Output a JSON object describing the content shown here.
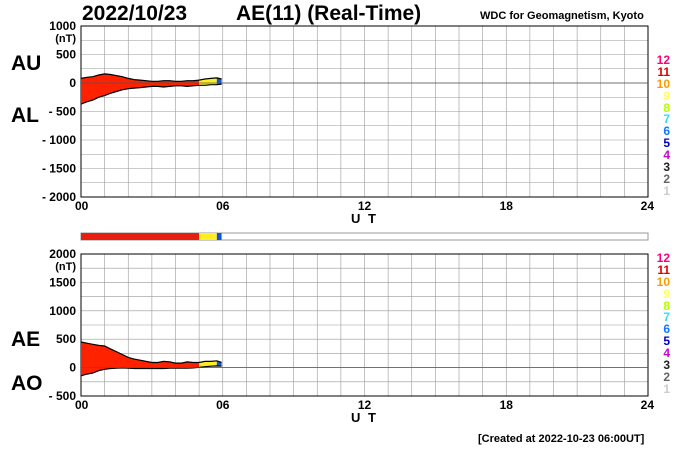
{
  "header": {
    "date": "2022/10/23",
    "title": "AE(11) (Real-Time)",
    "source": "WDC for Geomagnetism, Kyoto"
  },
  "footer": {
    "created": "[Created at 2022-10-23 06:00UT]"
  },
  "level_legend": {
    "levels": [
      "12",
      "11",
      "10",
      "9",
      "8",
      "7",
      "6",
      "5",
      "4",
      "3",
      "2",
      "1"
    ],
    "colors": [
      "#ff007f",
      "#e00000",
      "#ff9900",
      "#ffff66",
      "#b4ff00",
      "#33ddff",
      "#1177ff",
      "#0000bb",
      "#cc00cc",
      "#222222",
      "#666666",
      "#cccccc"
    ]
  },
  "colors": {
    "fill_main": "#ff2200",
    "fill_late": "#ffee22",
    "fill_end": "#1155dd",
    "grid": "#999999"
  },
  "chart_data": [
    {
      "type": "area",
      "name": "AU/AL",
      "side_labels": [
        "AU",
        "AL"
      ],
      "ylabel": "(nT)",
      "xlabel": "U T",
      "xlim": [
        0,
        24
      ],
      "ylim": [
        -2000,
        1000
      ],
      "xticks": [
        "00",
        "06",
        "12",
        "18",
        "24"
      ],
      "yticks": [
        {
          "value": 1000,
          "label": "1000"
        },
        {
          "value": 500,
          "label": "500"
        },
        {
          "value": 0,
          "label": "0"
        },
        {
          "value": -500,
          "label": "- 500"
        },
        {
          "value": -1000,
          "label": "- 1000"
        },
        {
          "value": -1500,
          "label": "- 1500"
        },
        {
          "value": -2000,
          "label": "- 2000"
        }
      ],
      "series": [
        {
          "name": "AU",
          "x": [
            0,
            0.25,
            0.5,
            0.75,
            1.0,
            1.25,
            1.5,
            1.75,
            2.0,
            2.25,
            2.5,
            2.75,
            3.0,
            3.25,
            3.5,
            3.75,
            4.0,
            4.25,
            4.5,
            4.75,
            5.0,
            5.25,
            5.5,
            5.75,
            5.95
          ],
          "values": [
            80,
            100,
            110,
            140,
            160,
            150,
            130,
            110,
            80,
            60,
            50,
            40,
            30,
            30,
            40,
            40,
            30,
            30,
            40,
            40,
            50,
            70,
            80,
            90,
            70
          ]
        },
        {
          "name": "AL",
          "x": [
            0,
            0.25,
            0.5,
            0.75,
            1.0,
            1.25,
            1.5,
            1.75,
            2.0,
            2.25,
            2.5,
            2.75,
            3.0,
            3.25,
            3.5,
            3.75,
            4.0,
            4.25,
            4.5,
            4.75,
            5.0,
            5.25,
            5.5,
            5.75,
            5.95
          ],
          "values": [
            -370,
            -330,
            -300,
            -250,
            -220,
            -180,
            -150,
            -120,
            -100,
            -90,
            -80,
            -70,
            -60,
            -60,
            -70,
            -60,
            -50,
            -50,
            -60,
            -50,
            -40,
            -40,
            -30,
            -30,
            -20
          ]
        }
      ]
    },
    {
      "type": "area",
      "name": "AE/AO",
      "side_labels": [
        "AE",
        "AO"
      ],
      "ylabel": "(nT)",
      "xlabel": "U T",
      "xlim": [
        0,
        24
      ],
      "ylim": [
        -500,
        2000
      ],
      "xticks": [
        "00",
        "06",
        "12",
        "18",
        "24"
      ],
      "yticks": [
        {
          "value": 2000,
          "label": "2000"
        },
        {
          "value": 1500,
          "label": "1500"
        },
        {
          "value": 1000,
          "label": "1000"
        },
        {
          "value": 500,
          "label": "500"
        },
        {
          "value": 0,
          "label": "0"
        },
        {
          "value": -500,
          "label": "- 500"
        }
      ],
      "series": [
        {
          "name": "AE",
          "x": [
            0,
            0.25,
            0.5,
            0.75,
            1.0,
            1.25,
            1.5,
            1.75,
            2.0,
            2.25,
            2.5,
            2.75,
            3.0,
            3.25,
            3.5,
            3.75,
            4.0,
            4.25,
            4.5,
            4.75,
            5.0,
            5.25,
            5.5,
            5.75,
            5.95
          ],
          "values": [
            450,
            430,
            410,
            390,
            380,
            330,
            280,
            230,
            180,
            150,
            130,
            110,
            90,
            90,
            110,
            100,
            80,
            80,
            100,
            90,
            90,
            110,
            110,
            120,
            90
          ]
        },
        {
          "name": "AO",
          "x": [
            0,
            0.25,
            0.5,
            0.75,
            1.0,
            1.25,
            1.5,
            1.75,
            2.0,
            2.25,
            2.5,
            2.75,
            3.0,
            3.25,
            3.5,
            3.75,
            4.0,
            4.25,
            4.5,
            4.75,
            5.0,
            5.25,
            5.5,
            5.75,
            5.95
          ],
          "values": [
            -145,
            -115,
            -95,
            -55,
            -30,
            -15,
            -10,
            -5,
            -10,
            -15,
            -15,
            -15,
            -15,
            -15,
            -15,
            -10,
            -10,
            -10,
            -10,
            -5,
            5,
            15,
            25,
            30,
            25
          ]
        }
      ]
    }
  ],
  "activity_bar": {
    "segments": [
      {
        "level": 11,
        "from": 0,
        "to": 5.0
      },
      {
        "level": 9,
        "from": 5.0,
        "to": 5.75
      },
      {
        "level": 6,
        "from": 5.75,
        "to": 5.95
      }
    ],
    "colors_by_level": {
      "11": "#e81e0e",
      "9": "#ffee22",
      "6": "#1155dd"
    }
  }
}
